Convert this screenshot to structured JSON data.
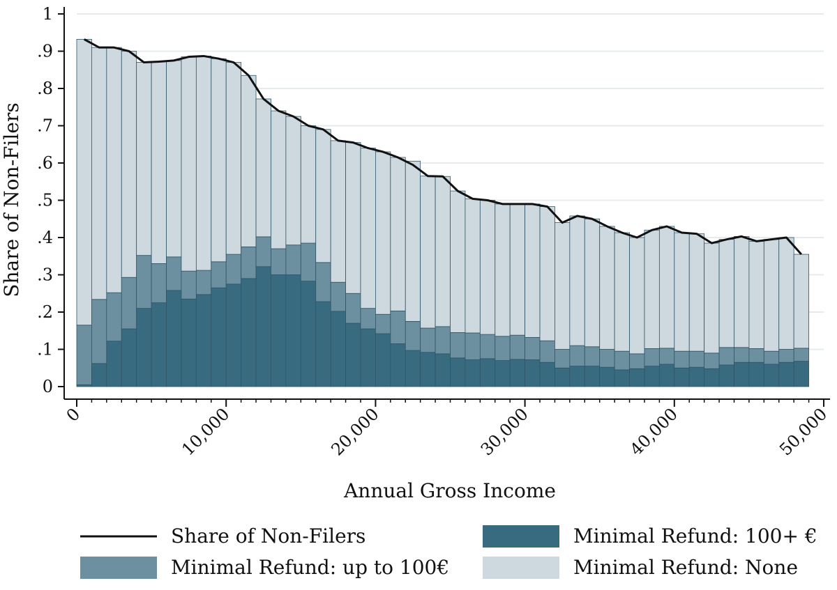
{
  "chart_data": {
    "type": "bar",
    "stacked": true,
    "xlabel": "Annual Gross Income",
    "ylabel": "Share of Non-Filers",
    "xlim": [
      0,
      50000
    ],
    "ylim": [
      0,
      1
    ],
    "bin_width": 1000,
    "x_ticks": [
      0,
      10000,
      20000,
      30000,
      40000,
      50000
    ],
    "x_tick_labels": [
      "0",
      "10,000",
      "20,000",
      "30,000",
      "40,000",
      "50,000"
    ],
    "y_ticks": [
      0,
      0.1,
      0.2,
      0.3,
      0.4,
      0.5,
      0.6,
      0.7,
      0.8,
      0.9,
      1
    ],
    "y_tick_labels": [
      "0",
      ".1",
      ".2",
      ".3",
      ".4",
      ".5",
      ".6",
      ".7",
      ".8",
      ".9",
      "1"
    ],
    "grid": true,
    "legend_position": "bottom",
    "x": [
      500,
      1500,
      2500,
      3500,
      4500,
      5500,
      6500,
      7500,
      8500,
      9500,
      10500,
      11500,
      12500,
      13500,
      14500,
      15500,
      16500,
      17500,
      18500,
      19500,
      20500,
      21500,
      22500,
      23500,
      24500,
      25500,
      26500,
      27500,
      28500,
      29500,
      30500,
      31500,
      32500,
      33500,
      34500,
      35500,
      36500,
      37500,
      38500,
      39500,
      40500,
      41500,
      42500,
      43500,
      44500,
      45500,
      46500,
      47500,
      48500
    ],
    "series": [
      {
        "name": "Minimal Refund: 100+ €",
        "kind": "bar",
        "color": "#396b80",
        "values": [
          0.005,
          0.062,
          0.122,
          0.155,
          0.21,
          0.225,
          0.258,
          0.235,
          0.247,
          0.265,
          0.275,
          0.29,
          0.322,
          0.3,
          0.3,
          0.283,
          0.228,
          0.202,
          0.17,
          0.155,
          0.142,
          0.115,
          0.097,
          0.092,
          0.088,
          0.077,
          0.072,
          0.075,
          0.07,
          0.073,
          0.072,
          0.065,
          0.05,
          0.055,
          0.055,
          0.052,
          0.045,
          0.048,
          0.055,
          0.06,
          0.05,
          0.052,
          0.048,
          0.058,
          0.065,
          0.065,
          0.06,
          0.065,
          0.068
        ]
      },
      {
        "name": "Minimal Refund: up to 100€",
        "kind": "bar",
        "color": "#6c909f",
        "values": [
          0.16,
          0.172,
          0.13,
          0.138,
          0.142,
          0.105,
          0.09,
          0.075,
          0.065,
          0.07,
          0.08,
          0.085,
          0.08,
          0.07,
          0.08,
          0.102,
          0.105,
          0.078,
          0.08,
          0.055,
          0.052,
          0.088,
          0.078,
          0.065,
          0.073,
          0.068,
          0.072,
          0.065,
          0.065,
          0.065,
          0.06,
          0.058,
          0.05,
          0.055,
          0.052,
          0.048,
          0.05,
          0.04,
          0.047,
          0.043,
          0.045,
          0.043,
          0.042,
          0.047,
          0.04,
          0.037,
          0.035,
          0.035,
          0.035
        ]
      },
      {
        "name": "Minimal Refund: None",
        "kind": "bar",
        "color": "#cdd9df",
        "values": [
          0.767,
          0.676,
          0.658,
          0.607,
          0.518,
          0.542,
          0.527,
          0.575,
          0.575,
          0.545,
          0.515,
          0.46,
          0.37,
          0.37,
          0.345,
          0.315,
          0.357,
          0.38,
          0.405,
          0.43,
          0.436,
          0.412,
          0.43,
          0.408,
          0.403,
          0.38,
          0.36,
          0.36,
          0.355,
          0.352,
          0.358,
          0.36,
          0.34,
          0.348,
          0.343,
          0.33,
          0.318,
          0.312,
          0.318,
          0.327,
          0.318,
          0.315,
          0.295,
          0.29,
          0.298,
          0.288,
          0.3,
          0.3,
          0.252
        ]
      },
      {
        "name": "Share of Non-Filers",
        "kind": "line",
        "color": "#111111",
        "values": [
          0.932,
          0.91,
          0.91,
          0.9,
          0.87,
          0.872,
          0.875,
          0.885,
          0.887,
          0.88,
          0.87,
          0.835,
          0.772,
          0.74,
          0.725,
          0.7,
          0.69,
          0.66,
          0.655,
          0.64,
          0.63,
          0.615,
          0.595,
          0.565,
          0.564,
          0.525,
          0.504,
          0.5,
          0.49,
          0.49,
          0.49,
          0.483,
          0.44,
          0.458,
          0.45,
          0.43,
          0.413,
          0.4,
          0.42,
          0.43,
          0.413,
          0.41,
          0.385,
          0.395,
          0.403,
          0.39,
          0.395,
          0.4,
          0.355
        ]
      }
    ],
    "legend": [
      {
        "label": "Share of Non-Filers",
        "series": 3,
        "symbol": "line"
      },
      {
        "label": "Minimal Refund: 100+ €",
        "series": 0,
        "symbol": "box"
      },
      {
        "label": "Minimal Refund: up to 100€",
        "series": 1,
        "symbol": "box"
      },
      {
        "label": "Minimal Refund: None",
        "series": 2,
        "symbol": "box"
      }
    ]
  }
}
